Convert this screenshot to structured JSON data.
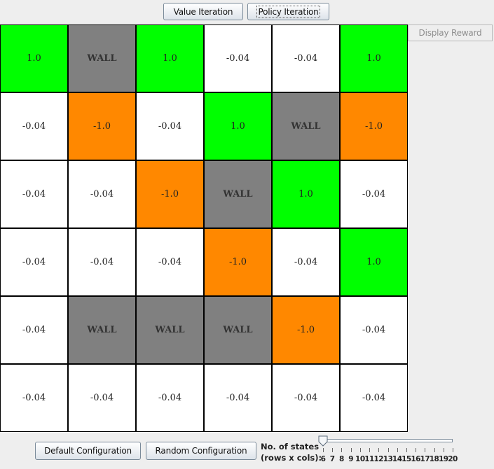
{
  "toolbar": {
    "value_iteration_label": "Value Iteration",
    "policy_iteration_label": "Policy Iteration",
    "display_reward_label": "Display Reward"
  },
  "grid": {
    "rows": 6,
    "cols": 6,
    "colors": {
      "positive": "#00ff00",
      "negative": "#ff8800",
      "wall": "#808080",
      "empty": "#ffffff"
    },
    "cells": [
      [
        {
          "type": "positive",
          "text": "1.0"
        },
        {
          "type": "wall",
          "text": "WALL"
        },
        {
          "type": "positive",
          "text": "1.0"
        },
        {
          "type": "empty",
          "text": "-0.04"
        },
        {
          "type": "empty",
          "text": "-0.04"
        },
        {
          "type": "positive",
          "text": "1.0"
        }
      ],
      [
        {
          "type": "empty",
          "text": "-0.04"
        },
        {
          "type": "negative",
          "text": "-1.0"
        },
        {
          "type": "empty",
          "text": "-0.04"
        },
        {
          "type": "positive",
          "text": "1.0"
        },
        {
          "type": "wall",
          "text": "WALL"
        },
        {
          "type": "negative",
          "text": "-1.0"
        }
      ],
      [
        {
          "type": "empty",
          "text": "-0.04"
        },
        {
          "type": "empty",
          "text": "-0.04"
        },
        {
          "type": "negative",
          "text": "-1.0"
        },
        {
          "type": "wall",
          "text": "WALL"
        },
        {
          "type": "positive",
          "text": "1.0"
        },
        {
          "type": "empty",
          "text": "-0.04"
        }
      ],
      [
        {
          "type": "empty",
          "text": "-0.04"
        },
        {
          "type": "empty",
          "text": "-0.04"
        },
        {
          "type": "empty",
          "text": "-0.04"
        },
        {
          "type": "negative",
          "text": "-1.0"
        },
        {
          "type": "empty",
          "text": "-0.04"
        },
        {
          "type": "positive",
          "text": "1.0"
        }
      ],
      [
        {
          "type": "empty",
          "text": "-0.04"
        },
        {
          "type": "wall",
          "text": "WALL"
        },
        {
          "type": "wall",
          "text": "WALL"
        },
        {
          "type": "wall",
          "text": "WALL"
        },
        {
          "type": "negative",
          "text": "-1.0"
        },
        {
          "type": "empty",
          "text": "-0.04"
        }
      ],
      [
        {
          "type": "empty",
          "text": "-0.04"
        },
        {
          "type": "empty",
          "text": "-0.04"
        },
        {
          "type": "empty",
          "text": "-0.04"
        },
        {
          "type": "empty",
          "text": "-0.04"
        },
        {
          "type": "empty",
          "text": "-0.04"
        },
        {
          "type": "empty",
          "text": "-0.04"
        }
      ]
    ]
  },
  "bottom": {
    "default_config_label": "Default Configuration",
    "random_config_label": "Random Configuration",
    "slider_label_line1": "No. of states",
    "slider_label_line2": "(rows x cols):",
    "slider_value": 6,
    "slider_ticks": [
      "6",
      "7",
      "8",
      "9",
      "10",
      "11",
      "12",
      "13",
      "14",
      "15",
      "16",
      "17",
      "18",
      "19",
      "20"
    ]
  }
}
